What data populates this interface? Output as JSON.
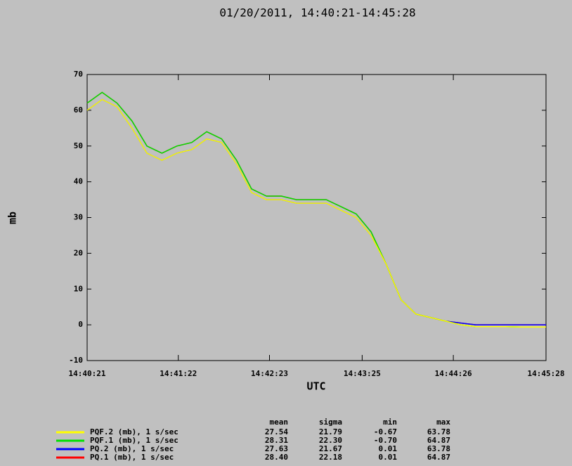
{
  "chart_data": {
    "type": "line",
    "title": "01/20/2011, 14:40:21-14:45:28",
    "x_label": "UTC",
    "y_label": "mb",
    "x": [
      "14:40:21",
      "14:40:31",
      "14:40:41",
      "14:40:51",
      "14:41:01",
      "14:41:11",
      "14:41:21",
      "14:41:31",
      "14:41:41",
      "14:41:51",
      "14:42:01",
      "14:42:11",
      "14:42:21",
      "14:42:31",
      "14:42:41",
      "14:42:51",
      "14:43:01",
      "14:43:11",
      "14:43:21",
      "14:43:31",
      "14:43:41",
      "14:43:51",
      "14:44:01",
      "14:44:11",
      "14:44:21",
      "14:44:31",
      "14:44:41",
      "14:44:51",
      "14:45:01",
      "14:45:11",
      "14:45:21",
      "14:45:28"
    ],
    "series": [
      {
        "name": "PQ.1 (mb), 1 s/sec",
        "color": "#ff0000",
        "values": [
          62,
          65,
          62,
          57,
          50,
          48,
          50,
          51,
          54,
          52,
          46,
          38,
          36,
          36,
          35,
          35,
          35,
          33,
          31,
          26,
          17,
          7,
          3,
          2,
          1,
          0.5,
          0.01,
          0.01,
          0.01,
          0.01,
          0.01,
          0.01
        ]
      },
      {
        "name": "PQ.2 (mb), 1 s/sec",
        "color": "#0000ff",
        "values": [
          60,
          63,
          61,
          55,
          48,
          46,
          48,
          49,
          52,
          51,
          45,
          37,
          35,
          35,
          34,
          34,
          34,
          32,
          30,
          25,
          17,
          7,
          3,
          2,
          1,
          0.5,
          0.01,
          0.01,
          0.01,
          0.01,
          0.01,
          0.01
        ]
      },
      {
        "name": "PQF.1 (mb), 1 s/sec",
        "color": "#00e000",
        "values": [
          62,
          65,
          62,
          57,
          50,
          48,
          50,
          51,
          54,
          52,
          46,
          38,
          36,
          36,
          35,
          35,
          35,
          33,
          31,
          26,
          17,
          7,
          3,
          2,
          1,
          0,
          -0.5,
          -0.5,
          -0.5,
          -0.6,
          -0.6,
          -0.6
        ]
      },
      {
        "name": "PQF.2 (mb), 1 s/sec",
        "color": "#ffff00",
        "values": [
          60,
          63,
          61,
          55,
          48,
          46,
          48,
          49,
          52,
          51,
          45,
          37,
          35,
          35,
          34,
          34,
          34,
          32,
          30,
          25,
          17,
          7,
          3,
          2,
          1,
          0,
          -0.5,
          -0.5,
          -0.5,
          -0.6,
          -0.6,
          -0.6
        ]
      }
    ],
    "xlim": [
      "14:40:21",
      "14:45:28"
    ],
    "xticks": [
      "14:40:21",
      "14:41:22",
      "14:42:23",
      "14:43:25",
      "14:44:26",
      "14:45:28"
    ],
    "ylim": [
      -10,
      70
    ],
    "yticks": [
      -10,
      0,
      10,
      20,
      30,
      40,
      50,
      60,
      70
    ],
    "stats": {
      "columns": [
        "mean",
        "sigma",
        "min",
        "max"
      ],
      "rows": [
        [
          "28.40",
          "22.18",
          "0.01",
          "64.87"
        ],
        [
          "27.63",
          "21.67",
          "0.01",
          "63.78"
        ],
        [
          "28.31",
          "22.30",
          "-0.70",
          "64.87"
        ],
        [
          "27.54",
          "21.79",
          "-0.67",
          "63.78"
        ]
      ]
    }
  }
}
